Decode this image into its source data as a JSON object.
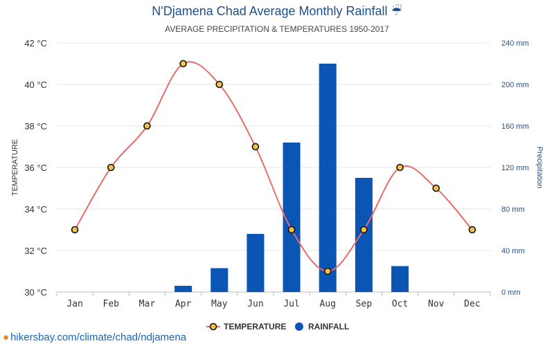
{
  "header": {
    "title": "N'Djamena Chad Average Monthly Rainfall",
    "title_icon": "umbrella-icon",
    "subtitle": "AVERAGE PRECIPITATION & TEMPERATURES 1950-2017"
  },
  "footer": {
    "source_icon": "map-pin-icon",
    "source_text": "hikersbay.com/climate/chad/ndjamena"
  },
  "colors": {
    "temperature_line": "#e86a6a",
    "temperature_marker": "#f5c04a",
    "rainfall_bar": "#0b56b5",
    "title": "#1f4e8c",
    "right_axis": "#1f4e8c"
  },
  "chart_data": {
    "type": "bar",
    "categories": [
      "Jan",
      "Feb",
      "Mar",
      "Apr",
      "May",
      "Jun",
      "Jul",
      "Aug",
      "Sep",
      "Oct",
      "Nov",
      "Dec"
    ],
    "series": [
      {
        "name": "TEMPERATURE",
        "type": "line",
        "axis": "left",
        "values": [
          33,
          36,
          38,
          41,
          40,
          37,
          33,
          31,
          33,
          36,
          35,
          33
        ]
      },
      {
        "name": "RAINFALL",
        "type": "bar",
        "axis": "right",
        "values": [
          0,
          0,
          0,
          6,
          23,
          56,
          144,
          220,
          110,
          25,
          0,
          0
        ]
      }
    ],
    "ylabel": "TEMPERATURE",
    "y2label": "Precipitation",
    "ylim": [
      30,
      42
    ],
    "y2lim": [
      0,
      240
    ],
    "yticks": [
      30,
      32,
      34,
      36,
      38,
      40,
      42
    ],
    "y2ticks": [
      0,
      40,
      80,
      120,
      160,
      200,
      240
    ],
    "ytick_labels": [
      "30 °C",
      "32 °C",
      "34 °C",
      "36 °C",
      "38 °C",
      "40 °C",
      "42 °C"
    ],
    "y2tick_labels": [
      "0 mm",
      "40 mm",
      "80 mm",
      "120 mm",
      "160 mm",
      "200 mm",
      "240 mm"
    ],
    "grid": true,
    "legend_position": "bottom-center"
  }
}
